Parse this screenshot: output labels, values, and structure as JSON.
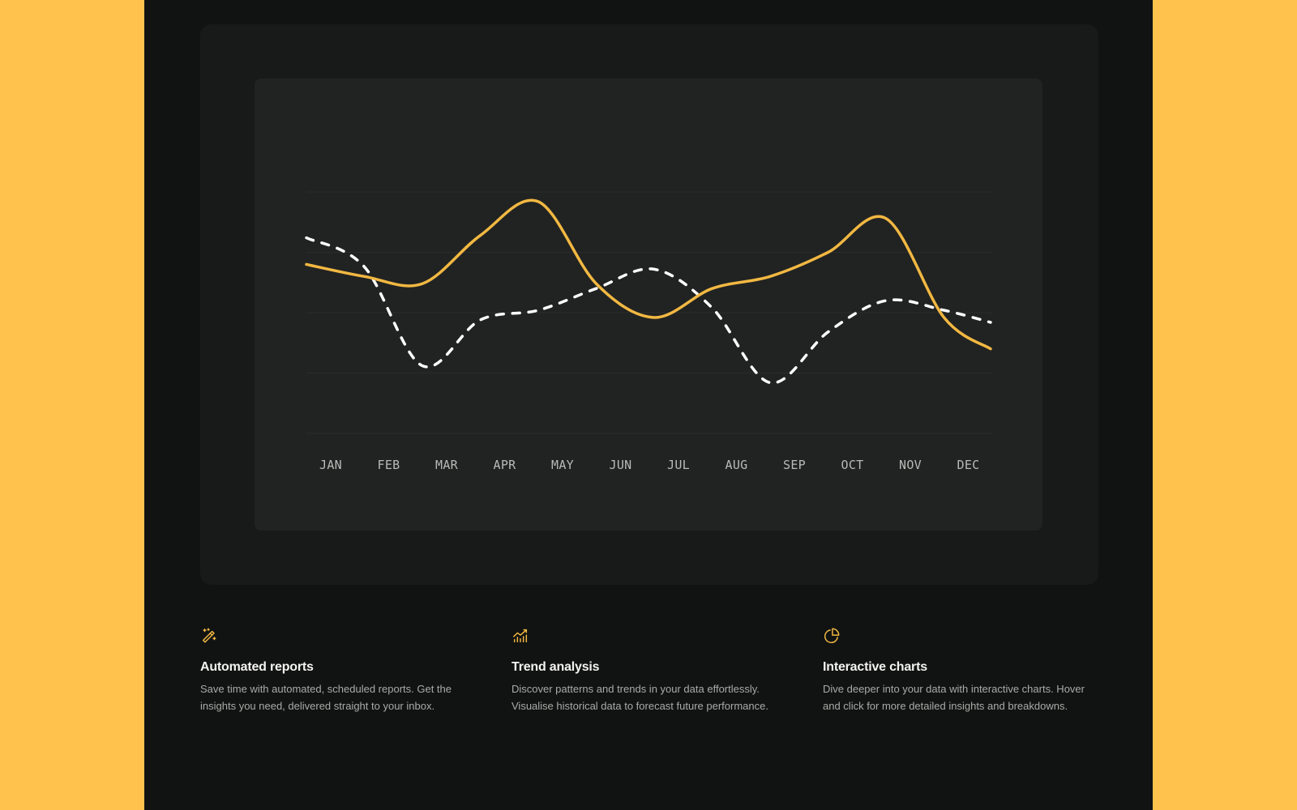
{
  "colors": {
    "background": "#FFC34D",
    "page": "#111312",
    "outer_card": "#181a19",
    "chart_panel": "#212322",
    "accent": "#F2B842",
    "secondary_line": "#FFFFFF",
    "gridline": "#2a2c2b"
  },
  "chart_data": {
    "type": "line",
    "title": "",
    "xlabel": "",
    "ylabel": "",
    "categories": [
      "JAN",
      "FEB",
      "MAR",
      "APR",
      "MAY",
      "JUN",
      "JUL",
      "AUG",
      "SEP",
      "OCT",
      "NOV",
      "DEC"
    ],
    "y_axis": {
      "labels_visible": false,
      "scale_note": "No y-axis or tick values are shown. 'values' below use an assumed nominal 0-100 scale mapped to gridlines (bottom gridline = 0, top gridline = 100). They are pixel-derived estimates, not real data values.",
      "nominal_range": [
        0,
        100
      ],
      "value_source": "estimated_from_pixels"
    },
    "grid": true,
    "gridlines": 5,
    "legend": "none",
    "smooth": true,
    "series": [
      {
        "name": "series-solid",
        "style": "solid",
        "color": "#F2B842",
        "values_are_estimates": true,
        "values": [
          70,
          65,
          62,
          82,
          96,
          62,
          48,
          60,
          65,
          75,
          89,
          48
        ],
        "end_value": 35
      },
      {
        "name": "series-dashed",
        "style": "dashed",
        "color": "#FFFFFF",
        "values_are_estimates": true,
        "values": [
          81,
          69,
          28,
          47,
          51,
          60,
          68,
          52,
          21,
          42,
          55,
          51
        ],
        "end_value": 46
      }
    ]
  },
  "features": [
    {
      "icon": "magic-wand-icon",
      "title": "Automated reports",
      "description": "Save time with automated, scheduled reports. Get the insights you need, delivered straight to your inbox."
    },
    {
      "icon": "trend-chart-icon",
      "title": "Trend analysis",
      "description": "Discover patterns and trends in your data effortlessly. Visualise historical data to forecast future performance."
    },
    {
      "icon": "pie-chart-icon",
      "title": "Interactive charts",
      "description": "Dive deeper into your data with interactive charts. Hover and click for more detailed insights and breakdowns."
    }
  ]
}
